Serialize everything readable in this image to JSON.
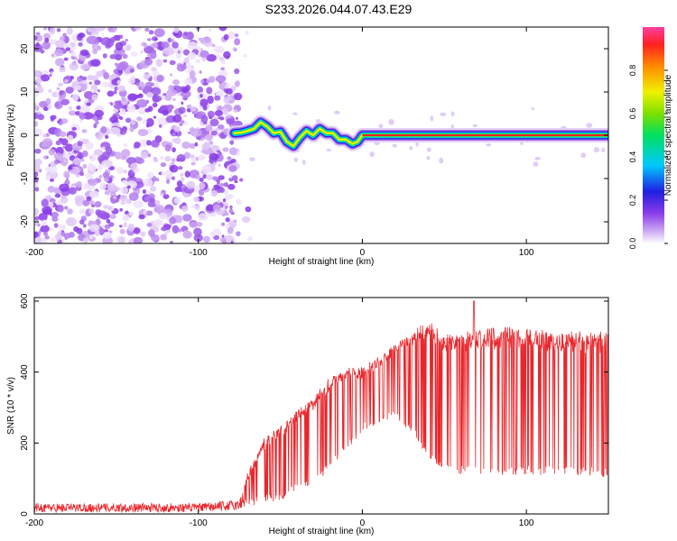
{
  "title": "S233.2026.044.07.43.E29",
  "colors": {
    "snr_line": "#e8262b",
    "purple": "#8a3be8",
    "axis": "#000000"
  },
  "chart_data": [
    {
      "type": "heatmap",
      "title": "S233.2026.044.07.43.E29",
      "xlabel": "Height of straight line (km)",
      "ylabel": "Frequency (Hz)",
      "xlim": [
        -200,
        150
      ],
      "ylim": [
        -25,
        25
      ],
      "xticks": [
        -200,
        -100,
        0,
        100
      ],
      "xtick_labels": [
        "-200",
        "-100",
        "0",
        "100"
      ],
      "yticks": [
        -20,
        -10,
        0,
        10,
        20
      ],
      "ytick_labels": [
        "-20",
        "-10",
        "0",
        "10",
        "20"
      ],
      "noise_region_x": [
        -200,
        -75
      ],
      "ridge": {
        "x": [
          -78,
          -74,
          -70,
          -66,
          -62,
          -58,
          -54,
          -50,
          -46,
          -42,
          -38,
          -34,
          -30,
          -26,
          -22,
          -18,
          -14,
          -10,
          -6,
          -3,
          0,
          10,
          30,
          60,
          90,
          120,
          150
        ],
        "freq": [
          0.5,
          0.6,
          1.0,
          1.5,
          3.0,
          2.0,
          0.5,
          0.8,
          -1.5,
          -2.5,
          -0.5,
          1.0,
          0.0,
          1.5,
          0.5,
          0.5,
          -1.0,
          -1.0,
          -2.0,
          -1.5,
          0.0,
          0.0,
          0.0,
          0.0,
          0.0,
          0.0,
          0.0
        ]
      },
      "colorbar": {
        "label": "Normalized spectral amplitude",
        "range": [
          0,
          1
        ],
        "ticks": [
          0.0,
          0.2,
          0.4,
          0.6,
          0.8
        ],
        "tick_labels": [
          "0.0",
          "0.2",
          "0.4",
          "0.6",
          "0.8"
        ]
      }
    },
    {
      "type": "line",
      "xlabel": "Height of straight line (km)",
      "ylabel": "SNR (10 * v/v)",
      "xlim": [
        -200,
        150
      ],
      "ylim": [
        0,
        610
      ],
      "xticks": [
        -200,
        -100,
        0,
        100
      ],
      "xtick_labels": [
        "-200",
        "-100",
        "0",
        "100"
      ],
      "yticks": [
        0,
        200,
        400,
        600
      ],
      "ytick_labels": [
        "0",
        "200",
        "400",
        "600"
      ],
      "envelope_x": [
        -200,
        -150,
        -100,
        -75,
        -70,
        -60,
        -50,
        -40,
        -30,
        -20,
        -10,
        0,
        10,
        20,
        30,
        40,
        50,
        60,
        80,
        100,
        120,
        150
      ],
      "envelope_upper": [
        30,
        30,
        30,
        40,
        120,
        220,
        260,
        300,
        340,
        390,
        420,
        420,
        450,
        490,
        520,
        550,
        520,
        520,
        530,
        530,
        520,
        520
      ],
      "envelope_lower": [
        5,
        5,
        5,
        10,
        20,
        30,
        40,
        60,
        80,
        120,
        180,
        230,
        250,
        270,
        230,
        150,
        120,
        110,
        110,
        110,
        110,
        105
      ],
      "peak_value": 600
    }
  ]
}
